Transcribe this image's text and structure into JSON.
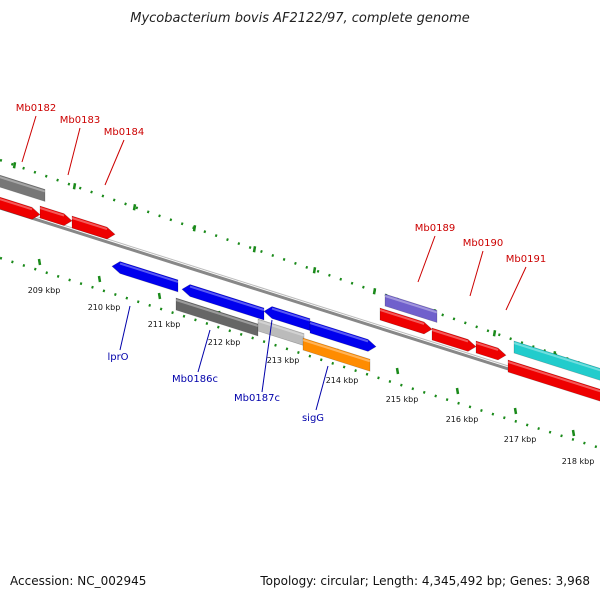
{
  "title": "Mycobacterium bovis AF2122/97, complete genome",
  "accession_label": "Accession: NC_002945",
  "summary_label": "Topology: circular; Length: 4,345,492 bp; Genes: 3,968",
  "colors": {
    "forward_label": "#cc0000",
    "reverse_label": "#0000aa",
    "backbone": "#888888",
    "ticks": "#1a8a1a",
    "leader": "#cc0000",
    "leader_reverse": "#0000aa"
  },
  "ticks": [
    "209 kbp",
    "210 kbp",
    "211 kbp",
    "212 kbp",
    "213 kbp",
    "214 kbp",
    "215 kbp",
    "216 kbp",
    "217 kbp",
    "218 kbp"
  ],
  "genes": [
    {
      "name": "Mb0182",
      "strand": "forward",
      "color": "#777777"
    },
    {
      "name": "Mb0183",
      "strand": "forward",
      "color": "#ee0000"
    },
    {
      "name": "Mb0184",
      "strand": "forward",
      "color": "#ee0000"
    },
    {
      "name": "lprO",
      "strand": "reverse",
      "color": "#0000ee"
    },
    {
      "name": "Mb0186c",
      "strand": "reverse",
      "color": "#666666"
    },
    {
      "name": "Mb0187c",
      "strand": "reverse",
      "color": "#bbbbbb"
    },
    {
      "name": "sigG",
      "strand": "reverse",
      "color": "#ff8c00"
    },
    {
      "name": "Mb0189",
      "strand": "forward",
      "color": "#7060cc"
    },
    {
      "name": "Mb0190",
      "strand": "forward",
      "color": "#ee0000"
    },
    {
      "name": "Mb0191",
      "strand": "forward",
      "color": "#ee0000"
    }
  ]
}
